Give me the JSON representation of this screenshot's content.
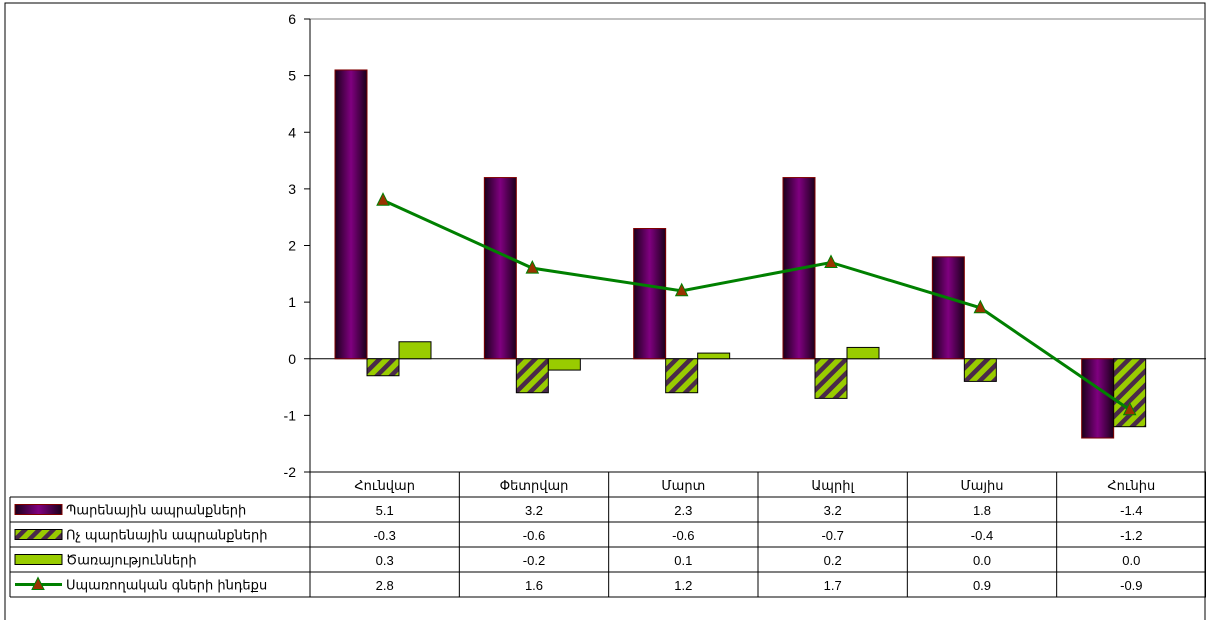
{
  "chart_data": {
    "type": "bar",
    "categories": [
      "Հունվար",
      "Փետրվար",
      "Մարտ",
      "Ապրիլ",
      "Մայիս",
      "Հունիս"
    ],
    "series": [
      {
        "name": "Պարենային ապրանքների",
        "kind": "bar",
        "color": "#800080",
        "values": [
          5.1,
          3.2,
          2.3,
          3.2,
          1.8,
          -1.4
        ]
      },
      {
        "name": "Ոչ պարենային ապրանքների",
        "kind": "bar",
        "color": "#99CC00",
        "values": [
          -0.3,
          -0.6,
          -0.6,
          -0.7,
          -0.4,
          -1.2
        ]
      },
      {
        "name": "Ծառայությունների",
        "kind": "bar",
        "color": "#99CC00",
        "values": [
          0.3,
          -0.2,
          0.1,
          0.2,
          0.0,
          0.0
        ]
      },
      {
        "name": "Սպառողական գների ինդեքս",
        "kind": "line",
        "color": "#008000",
        "marker_color": "#993300",
        "values": [
          2.8,
          1.6,
          1.2,
          1.7,
          0.9,
          -0.9
        ]
      }
    ],
    "table_values": [
      [
        "5.1",
        "3.2",
        "2.3",
        "3.2",
        "1.8",
        "-1.4"
      ],
      [
        "-0.3",
        "-0.6",
        "-0.6",
        "-0.7",
        "-0.4",
        "-1.2"
      ],
      [
        "0.3",
        "-0.2",
        "0.1",
        "0.2",
        "0.0",
        "0.0"
      ],
      [
        "2.8",
        "1.6",
        "1.2",
        "1.7",
        "0.9",
        "-0.9"
      ]
    ],
    "ylim": [
      -2,
      6
    ],
    "yticks": [
      "-2",
      "-1",
      "0",
      "1",
      "2",
      "3",
      "4",
      "5",
      "6"
    ],
    "grid": false,
    "legend": "data-table",
    "title": "",
    "xlabel": "",
    "ylabel": ""
  }
}
